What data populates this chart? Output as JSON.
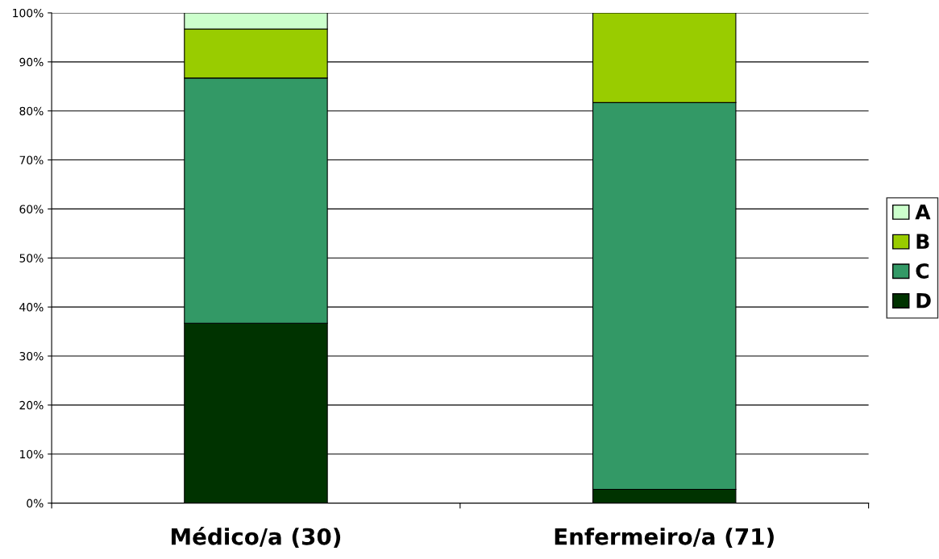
{
  "chart_data": {
    "type": "bar",
    "stacked": true,
    "categories": [
      "Médico/a (30)",
      "Enfermeiro/a (71)"
    ],
    "series": [
      {
        "name": "D",
        "color": "#003300",
        "values": [
          36.7,
          2.8
        ]
      },
      {
        "name": "C",
        "color": "#339966",
        "values": [
          50.0,
          78.9
        ]
      },
      {
        "name": "B",
        "color": "#99cc00",
        "values": [
          10.0,
          18.3
        ]
      },
      {
        "name": "A",
        "color": "#ccffcc",
        "values": [
          3.3,
          null
        ]
      }
    ],
    "ylim": [
      0,
      100
    ],
    "yticks": [
      {
        "value": 0,
        "label": "0%"
      },
      {
        "value": 10,
        "label": "10%"
      },
      {
        "value": 20,
        "label": "20%"
      },
      {
        "value": 30,
        "label": "30%"
      },
      {
        "value": 40,
        "label": "40%"
      },
      {
        "value": 50,
        "label": "50%"
      },
      {
        "value": 60,
        "label": "60%"
      },
      {
        "value": 70,
        "label": "70%"
      },
      {
        "value": 80,
        "label": "80%"
      },
      {
        "value": 90,
        "label": "90%"
      },
      {
        "value": 100,
        "label": "100%"
      }
    ],
    "grid": "y",
    "legend": "right"
  }
}
